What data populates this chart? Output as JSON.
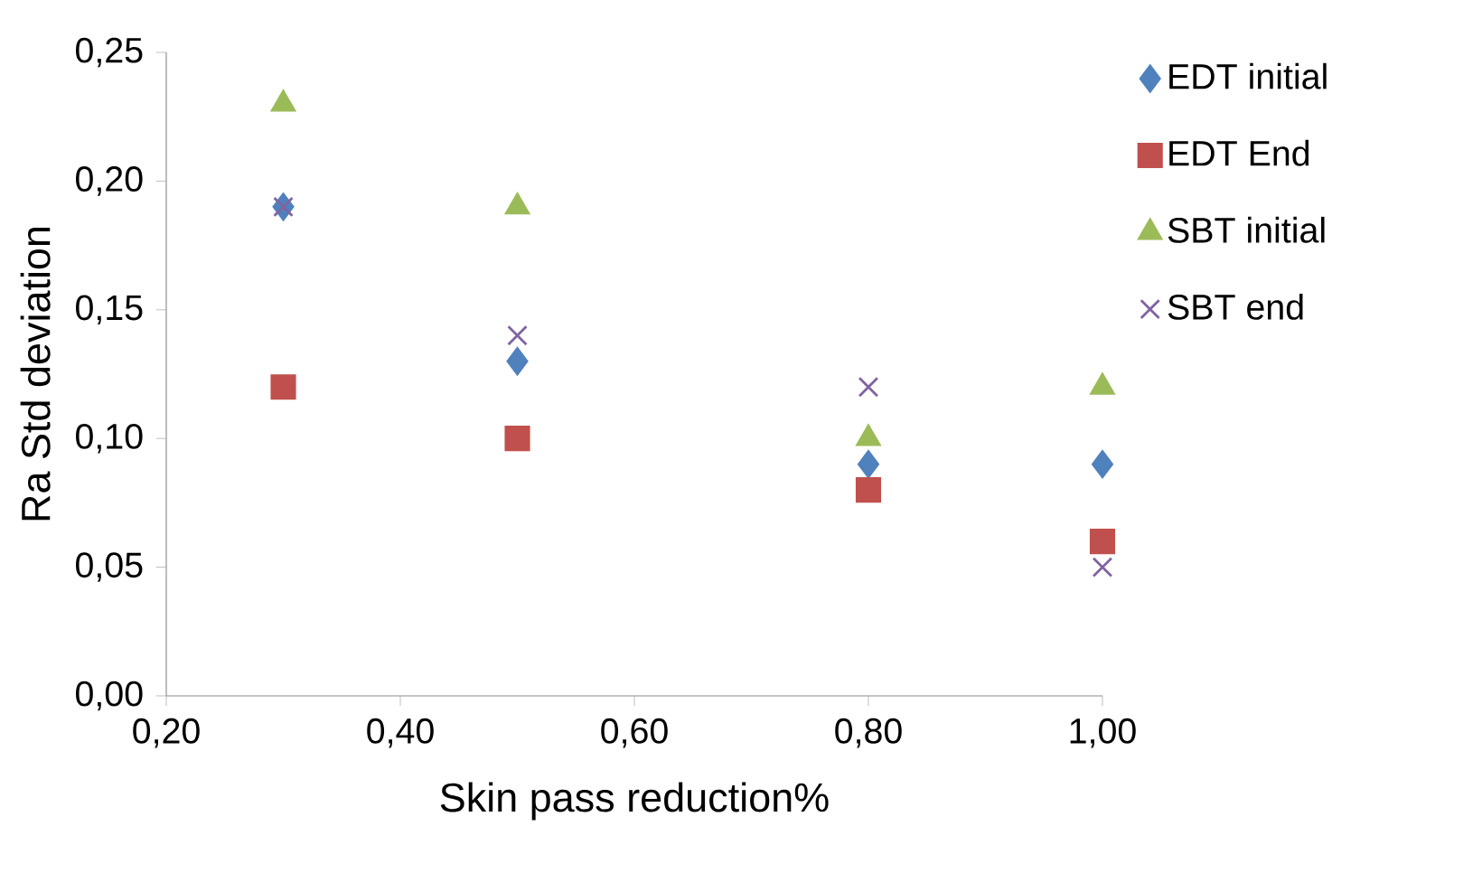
{
  "chart_data": {
    "type": "scatter",
    "xlabel": "Skin pass reduction%",
    "ylabel": "Ra Std deviation",
    "x": [
      0.3,
      0.5,
      0.8,
      1.0
    ],
    "series": [
      {
        "name": "EDT initial",
        "color": "#4f81bd",
        "marker": "diamond",
        "values": [
          0.19,
          0.13,
          0.09,
          0.09
        ]
      },
      {
        "name": "EDT End",
        "color": "#c0504d",
        "marker": "square",
        "values": [
          0.12,
          0.1,
          0.08,
          0.06
        ]
      },
      {
        "name": "SBT initial",
        "color": "#9bbb59",
        "marker": "triangle",
        "values": [
          0.23,
          0.19,
          0.1,
          0.12
        ]
      },
      {
        "name": "SBT end",
        "color": "#8064a2",
        "marker": "cross",
        "values": [
          0.19,
          0.14,
          0.12,
          0.05
        ]
      }
    ],
    "xlim": [
      0.2,
      1.0
    ],
    "xticks": [
      {
        "value": 0.2,
        "label": "0,20"
      },
      {
        "value": 0.4,
        "label": "0,40"
      },
      {
        "value": 0.6,
        "label": "0,60"
      },
      {
        "value": 0.8,
        "label": "0,80"
      },
      {
        "value": 1.0,
        "label": "1,00"
      }
    ],
    "ylim": [
      0,
      0.25
    ],
    "yticks": [
      {
        "value": 0,
        "label": "0,00"
      },
      {
        "value": 0.05,
        "label": "0,05"
      },
      {
        "value": 0.1,
        "label": "0,10"
      },
      {
        "value": 0.15,
        "label": "0,15"
      },
      {
        "value": 0.2,
        "label": "0,20"
      },
      {
        "value": 0.25,
        "label": "0,25"
      }
    ],
    "grid": false,
    "legend": "right"
  }
}
